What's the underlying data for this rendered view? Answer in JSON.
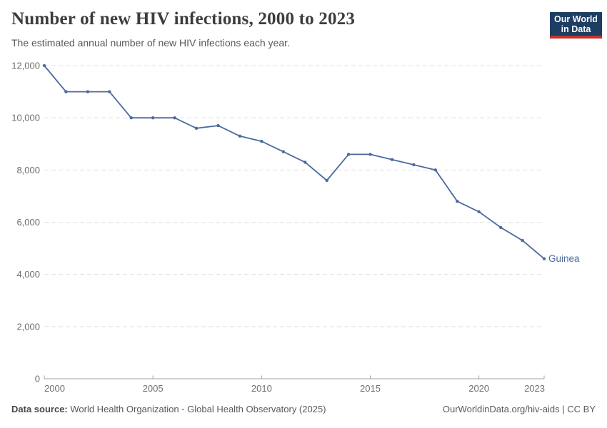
{
  "header": {
    "title": "Number of new HIV infections, 2000 to 2023",
    "subtitle": "The estimated annual number of new HIV infections each year.",
    "logo": {
      "line1": "Our World",
      "line2": "in Data"
    }
  },
  "colors": {
    "series_blue": "#4C6A9F",
    "logo_navy": "#1D3D63",
    "logo_red": "#C7302B",
    "gridline": "#E0E0E0",
    "axis": "#A3A3A3",
    "tick_text": "#6E6E6E"
  },
  "chart_data": {
    "type": "line",
    "title": "Number of new HIV infections, 2000 to 2023",
    "xlabel": "",
    "ylabel": "",
    "grid": "horizontal-dashed",
    "legend_position": "end-of-line",
    "xlim": [
      2000,
      2023
    ],
    "ylim": [
      0,
      12000
    ],
    "x": [
      2000,
      2001,
      2002,
      2003,
      2004,
      2005,
      2006,
      2007,
      2008,
      2009,
      2010,
      2011,
      2012,
      2013,
      2014,
      2015,
      2016,
      2017,
      2018,
      2019,
      2020,
      2021,
      2022,
      2023
    ],
    "series": [
      {
        "name": "Guinea",
        "color": "#4C6A9F",
        "values": [
          12000,
          11000,
          11000,
          11000,
          10000,
          10000,
          10000,
          9600,
          9700,
          9300,
          9100,
          8700,
          8300,
          7600,
          8600,
          8600,
          8400,
          8200,
          8000,
          6800,
          6400,
          5800,
          5300,
          4600
        ]
      }
    ],
    "yticks": [
      0,
      2000,
      4000,
      6000,
      8000,
      10000,
      12000
    ],
    "ytick_labels": [
      "0",
      "2,000",
      "4,000",
      "6,000",
      "8,000",
      "10,000",
      "12,000"
    ],
    "xticks": [
      2000,
      2005,
      2010,
      2015,
      2020,
      2023
    ],
    "xtick_labels": [
      "2000",
      "2005",
      "2010",
      "2015",
      "2020",
      "2023"
    ]
  },
  "footer": {
    "datasource_label": "Data source:",
    "datasource_text": " World Health Organization - Global Health Observatory (2025)",
    "link": "OurWorldinData.org/hiv-aids | CC BY"
  }
}
